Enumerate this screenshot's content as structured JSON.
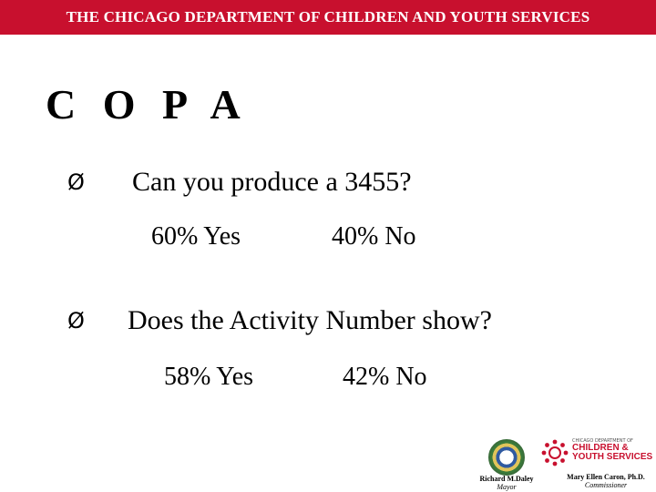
{
  "header": {
    "text": "THE CHICAGO DEPARTMENT OF CHILDREN AND YOUTH SERVICES"
  },
  "title": "C O P A",
  "questions": [
    {
      "bullet": "Ø",
      "question": "Can you produce a 3455?",
      "yes": "60%  Yes",
      "no": "40%  No"
    },
    {
      "bullet": "Ø",
      "question": "Does the Activity Number show?",
      "yes": "58%  Yes",
      "no": "42%  No"
    }
  ],
  "footer": {
    "left": {
      "name": "Richard M.Daley",
      "role": "Mayor"
    },
    "right": {
      "name": "Mary Ellen Caron, Ph.D.",
      "role": "Commissioner"
    },
    "logo_small": "CHICAGO DEPARTMENT OF",
    "logo_line1": "CHILDREN &",
    "logo_line2": "YOUTH SERVICES"
  },
  "colors": {
    "header_bg": "#c8102e",
    "logo_red": "#c8102e"
  },
  "icons": {
    "bullet": "arrow-bullet-icon",
    "city_seal": "chicago-seal-icon",
    "dcys_logo": "dcys-figures-icon"
  }
}
